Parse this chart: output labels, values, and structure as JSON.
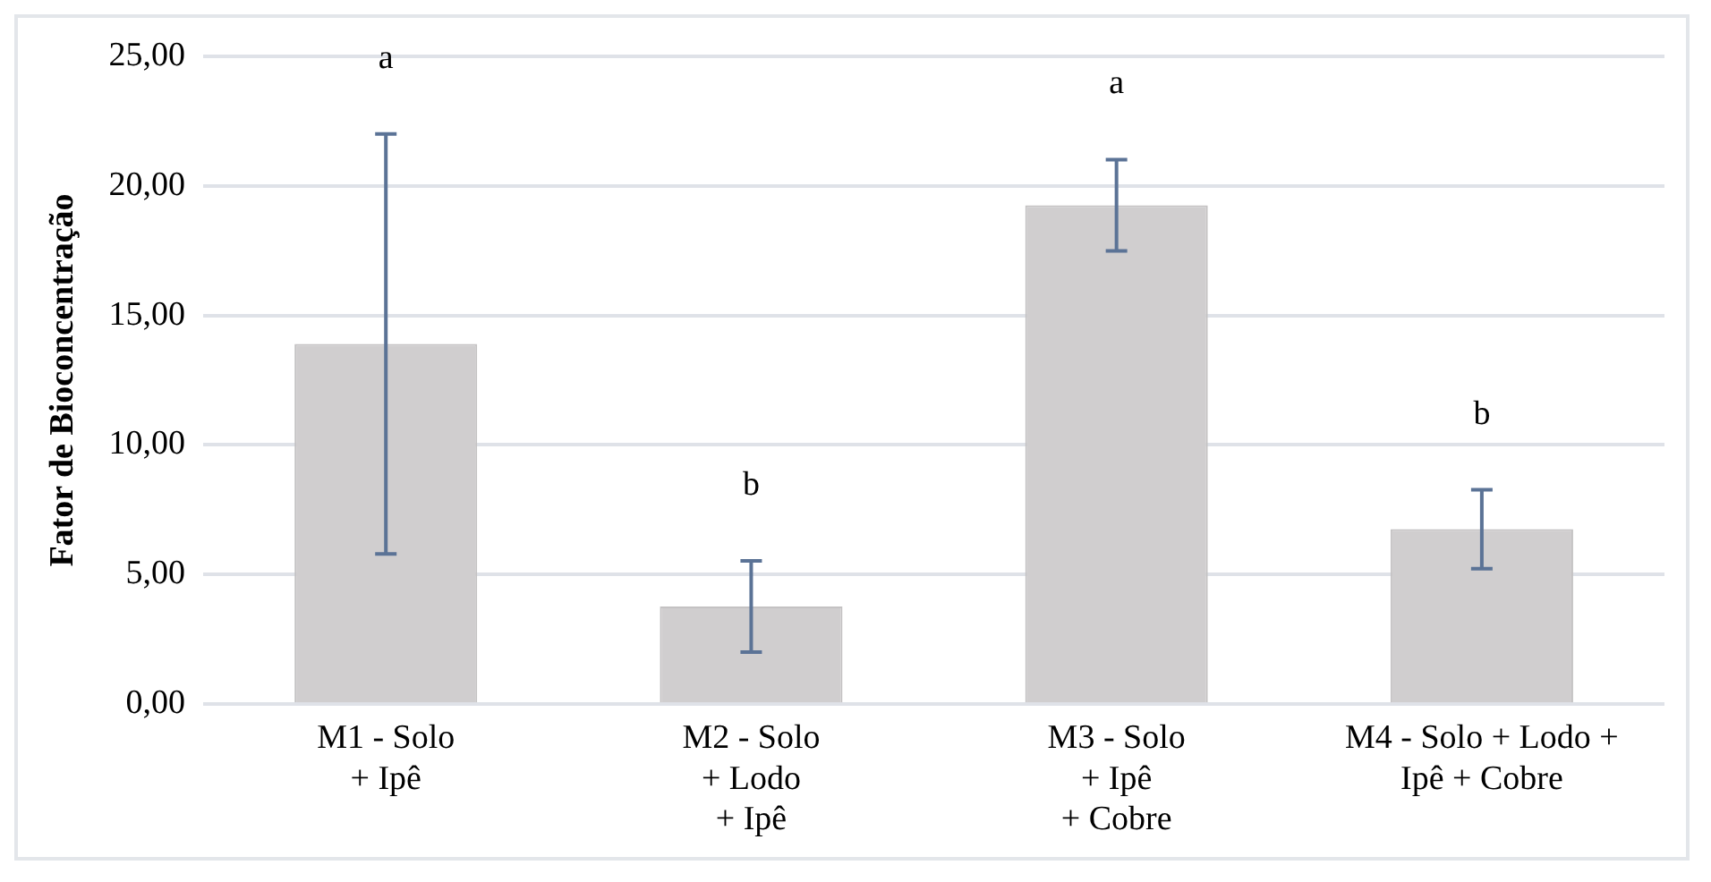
{
  "chart_data": {
    "type": "bar",
    "ylabel": "Fator de Bioconcentração",
    "categories": [
      "M1 - Solo\n+ Ipê",
      "M2 - Solo\n+ Lodo\n+ Ipê",
      "M3 - Solo\n+ Ipê\n+ Cobre",
      "M4 - Solo + Lodo +\nIpê + Cobre"
    ],
    "values": [
      13.9,
      3.77,
      19.25,
      6.75
    ],
    "errors": [
      8.1,
      1.76,
      1.76,
      1.52
    ],
    "color": "#d0cecf",
    "ylim": [
      0,
      25
    ],
    "yticks": [
      {
        "value": 0,
        "label": "0,00"
      },
      {
        "value": 5,
        "label": "5,00"
      },
      {
        "value": 10,
        "label": "10,00"
      },
      {
        "value": 15,
        "label": "15,00"
      },
      {
        "value": 20,
        "label": "20,00"
      },
      {
        "value": 25,
        "label": "25,00"
      }
    ],
    "grid": "y",
    "annotations": [
      "a",
      "b",
      "a",
      "b"
    ]
  }
}
